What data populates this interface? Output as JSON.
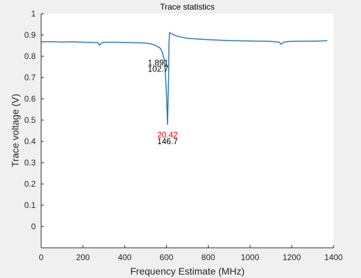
{
  "figure": {
    "background": "#f0f0f0",
    "axes_background": "#ffffff",
    "line_color": "#2a7ab8",
    "annotation_colors": {
      "normal": "#000000",
      "highlight": "#ff0000"
    }
  },
  "chart_data": {
    "type": "line",
    "title": "Trace statistics",
    "xlabel": "Frequency Estimate (MHz)",
    "ylabel": "Trace voltage (V)",
    "xlim": [
      0,
      1400
    ],
    "ylim": [
      -0.1,
      1.0
    ],
    "xticks": [
      0,
      200,
      400,
      600,
      800,
      1000,
      1200,
      1400
    ],
    "yticks": [
      0,
      0.1,
      0.2,
      0.3,
      0.4,
      0.5,
      0.6,
      0.7,
      0.8,
      0.9,
      1
    ],
    "ytick_labels": [
      "0",
      "0.1",
      "0.2",
      "0.3",
      "0.4",
      "0.5",
      "0.6",
      "0.7",
      "0.8",
      "0.9",
      "1"
    ],
    "grid": false,
    "box": "top-right open",
    "series": [
      {
        "x": [
          0,
          50,
          100,
          150,
          200,
          250,
          270,
          280,
          290,
          310,
          350,
          400,
          450,
          500,
          530,
          550,
          570,
          580,
          590,
          595,
          600,
          605,
          610,
          612,
          615,
          620,
          630,
          650,
          680,
          700,
          750,
          800,
          900,
          1000,
          1100,
          1140,
          1150,
          1160,
          1180,
          1200,
          1250,
          1300,
          1370
        ],
        "y": [
          0.868,
          0.869,
          0.867,
          0.868,
          0.866,
          0.865,
          0.864,
          0.852,
          0.864,
          0.866,
          0.866,
          0.865,
          0.864,
          0.862,
          0.857,
          0.85,
          0.838,
          0.82,
          0.78,
          0.72,
          0.62,
          0.48,
          0.7,
          0.86,
          0.912,
          0.908,
          0.903,
          0.895,
          0.888,
          0.885,
          0.881,
          0.878,
          0.874,
          0.872,
          0.87,
          0.866,
          0.856,
          0.866,
          0.869,
          0.87,
          0.871,
          0.871,
          0.873
        ]
      }
    ],
    "annotations": [
      {
        "text": "1.891",
        "x": 560,
        "y": 0.77,
        "color": "normal"
      },
      {
        "text": "102.7",
        "x": 560,
        "y": 0.74,
        "color": "normal"
      },
      {
        "text": "20.42",
        "x": 605,
        "y": 0.43,
        "color": "highlight"
      },
      {
        "text": "146.7",
        "x": 605,
        "y": 0.4,
        "color": "normal"
      }
    ]
  }
}
